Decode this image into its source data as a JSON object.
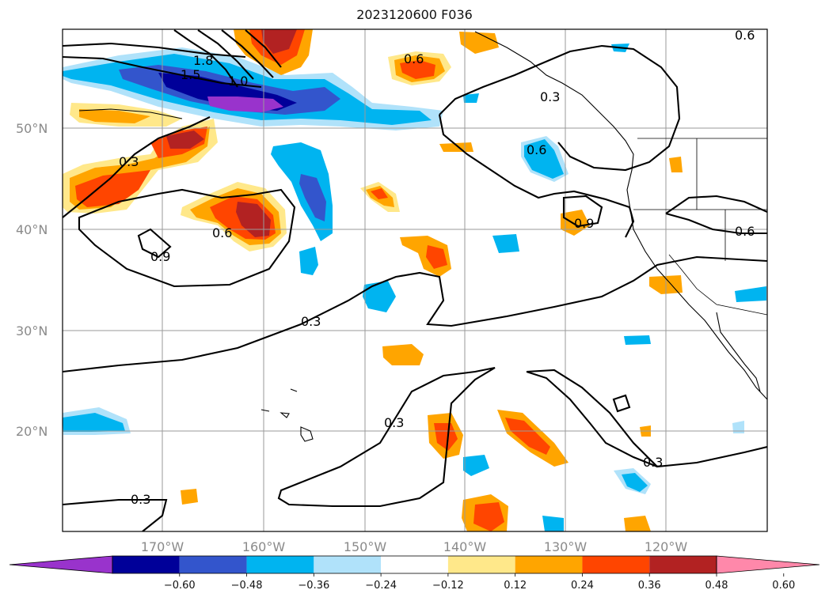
{
  "title": "2023120600 F036",
  "lat_labels": [
    "50°N",
    "40°N",
    "30°N",
    "20°N"
  ],
  "lon_labels": [
    "170°W",
    "160°W",
    "150°W",
    "140°W",
    "130°W",
    "120°W"
  ],
  "colorbar": {
    "ticks": [
      "−0.60",
      "−0.48",
      "−0.36",
      "−0.24",
      "−0.12",
      "0.12",
      "0.24",
      "0.36",
      "0.48",
      "0.60"
    ],
    "colors": [
      "#9933cc",
      "#000099",
      "#3355cc",
      "#00b4f0",
      "#b0e2fa",
      "#ffffff",
      "#ffe88a",
      "#ffa500",
      "#ff4500",
      "#b22222",
      "#ff88aa"
    ]
  },
  "contour_labels": [
    "1.8",
    "1.5",
    "1.0",
    "0.6",
    "0.3",
    "0.6",
    "0.3",
    "0.6",
    "0.9",
    "0.6",
    "0.3",
    "0.3",
    "0.3",
    "0.9",
    "0.6",
    "0.3"
  ],
  "colors": {
    "fill_positive_1": "#ffe88a",
    "fill_positive_2": "#ffa500",
    "fill_positive_3": "#ff4500",
    "fill_positive_4": "#b22222",
    "fill_negative_1": "#b0e2fa",
    "fill_negative_2": "#00b4f0",
    "fill_negative_3": "#3355cc",
    "fill_negative_4": "#000099",
    "fill_negative_5": "#9933cc"
  }
}
